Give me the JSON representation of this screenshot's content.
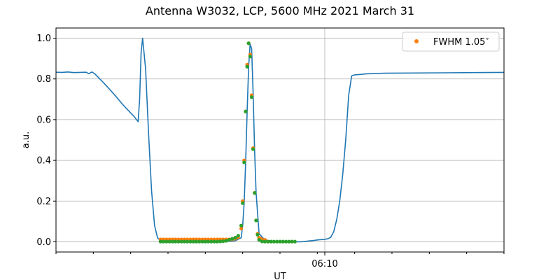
{
  "chart_data": {
    "type": "line",
    "title": "Antenna W3032, LCP, 5600 MHz 2021 March 31",
    "xlabel": "UT",
    "ylabel": "a.u.",
    "x_unit": "minutes UT",
    "xlim": [
      6.0,
      6.33
    ],
    "ylim": [
      -0.05,
      1.05
    ],
    "x_tick_labels": [
      {
        "x": 6.1667,
        "label": "06:10"
      }
    ],
    "y_ticks": [
      0.0,
      0.2,
      0.4,
      0.6,
      0.8,
      1.0
    ],
    "y_tick_labels": [
      "0.0",
      "0.2",
      "0.4",
      "0.6",
      "0.8",
      "1.0"
    ],
    "grid": true,
    "legend": {
      "position": "top-right",
      "label": "FWHM 1.05$^\\circ$"
    },
    "colors": {
      "line": "#1f77b4",
      "fit": "#ff7f0e",
      "points": "#2ca02c",
      "grid": "#b0b0b0"
    },
    "series": [
      {
        "kind": "line",
        "color": "#1f77b4",
        "x": [
          0,
          0.02,
          0.04,
          0.06,
          0.08,
          0.1,
          0.11,
          0.12,
          0.13,
          0.14,
          0.16,
          0.18,
          0.2,
          0.22,
          0.24,
          0.26,
          0.275,
          0.28,
          0.285,
          0.29,
          0.3,
          0.31,
          0.32,
          0.33,
          0.34,
          0.35,
          0.36,
          0.38,
          0.4,
          0.44,
          0.48,
          0.52,
          0.56,
          0.6,
          0.62,
          0.625,
          0.63,
          0.635,
          0.64,
          0.645,
          0.65,
          0.655,
          0.66,
          0.665,
          0.67,
          0.68,
          0.7,
          0.74,
          0.78,
          0.82,
          0.84,
          0.86,
          0.88,
          0.9,
          0.91,
          0.92,
          0.93,
          0.94,
          0.95,
          0.96,
          0.97,
          0.98,
          0.99,
          1.0,
          1.02,
          1.04,
          1.06,
          1.1,
          1.2,
          1.3,
          1.4,
          1.5
        ],
        "y": [
          0.833,
          0.832,
          0.834,
          0.831,
          0.832,
          0.833,
          0.826,
          0.834,
          0.825,
          0.81,
          0.78,
          0.748,
          0.715,
          0.68,
          0.648,
          0.618,
          0.59,
          0.7,
          0.93,
          1.0,
          0.85,
          0.53,
          0.25,
          0.08,
          0.02,
          0.005,
          0.002,
          0.001,
          0.001,
          0.0,
          0.0,
          0.001,
          0.002,
          0.005,
          0.02,
          0.08,
          0.19,
          0.39,
          0.64,
          0.86,
          0.97,
          0.95,
          0.73,
          0.45,
          0.24,
          0.04,
          0.008,
          0.002,
          0.0,
          0.0,
          0.003,
          0.006,
          0.01,
          0.012,
          0.015,
          0.022,
          0.05,
          0.11,
          0.2,
          0.33,
          0.5,
          0.72,
          0.815,
          0.82,
          0.822,
          0.825,
          0.826,
          0.828,
          0.829,
          0.83,
          0.831,
          0.832
        ]
      },
      {
        "kind": "scatter",
        "name": "FWHM 1.05$^\\circ$",
        "color": "#ff7f0e",
        "x": [
          0.35,
          0.36,
          0.37,
          0.38,
          0.39,
          0.4,
          0.41,
          0.42,
          0.43,
          0.44,
          0.45,
          0.46,
          0.47,
          0.48,
          0.49,
          0.5,
          0.51,
          0.52,
          0.53,
          0.54,
          0.55,
          0.56,
          0.57,
          0.58,
          0.59,
          0.6,
          0.61,
          0.62,
          0.625,
          0.63,
          0.635,
          0.64,
          0.645,
          0.65,
          0.655,
          0.66,
          0.665,
          0.67,
          0.675,
          0.68,
          0.685,
          0.69,
          0.7
        ],
        "y": [
          0.012,
          0.012,
          0.012,
          0.012,
          0.012,
          0.012,
          0.012,
          0.012,
          0.012,
          0.012,
          0.012,
          0.012,
          0.012,
          0.012,
          0.012,
          0.012,
          0.012,
          0.012,
          0.012,
          0.012,
          0.012,
          0.012,
          0.012,
          0.012,
          0.013,
          0.015,
          0.022,
          0.065,
          0.2,
          0.4,
          0.64,
          0.87,
          0.975,
          0.92,
          0.72,
          0.46,
          0.24,
          0.105,
          0.04,
          0.02,
          0.015,
          0.012,
          0.01
        ]
      },
      {
        "kind": "scatter",
        "color": "#2ca02c",
        "x": [
          0.35,
          0.36,
          0.37,
          0.38,
          0.39,
          0.4,
          0.41,
          0.42,
          0.43,
          0.44,
          0.45,
          0.46,
          0.47,
          0.48,
          0.49,
          0.5,
          0.51,
          0.52,
          0.53,
          0.54,
          0.55,
          0.56,
          0.57,
          0.58,
          0.59,
          0.6,
          0.61,
          0.62,
          0.625,
          0.63,
          0.635,
          0.64,
          0.645,
          0.65,
          0.655,
          0.66,
          0.665,
          0.67,
          0.675,
          0.68,
          0.69,
          0.7,
          0.71,
          0.72,
          0.73,
          0.74,
          0.75,
          0.76,
          0.77,
          0.78,
          0.79,
          0.8
        ],
        "y": [
          0.001,
          0.001,
          0.001,
          0.001,
          0.001,
          0.001,
          0.001,
          0.001,
          0.001,
          0.001,
          0.001,
          0.001,
          0.001,
          0.001,
          0.001,
          0.001,
          0.001,
          0.001,
          0.001,
          0.001,
          0.002,
          0.003,
          0.005,
          0.01,
          0.015,
          0.02,
          0.03,
          0.08,
          0.19,
          0.39,
          0.64,
          0.86,
          0.975,
          0.91,
          0.71,
          0.455,
          0.24,
          0.105,
          0.035,
          0.01,
          0.002,
          0.001,
          0.001,
          0.001,
          0.001,
          0.001,
          0.001,
          0.001,
          0.001,
          0.001,
          0.001,
          0.001
        ]
      }
    ]
  }
}
